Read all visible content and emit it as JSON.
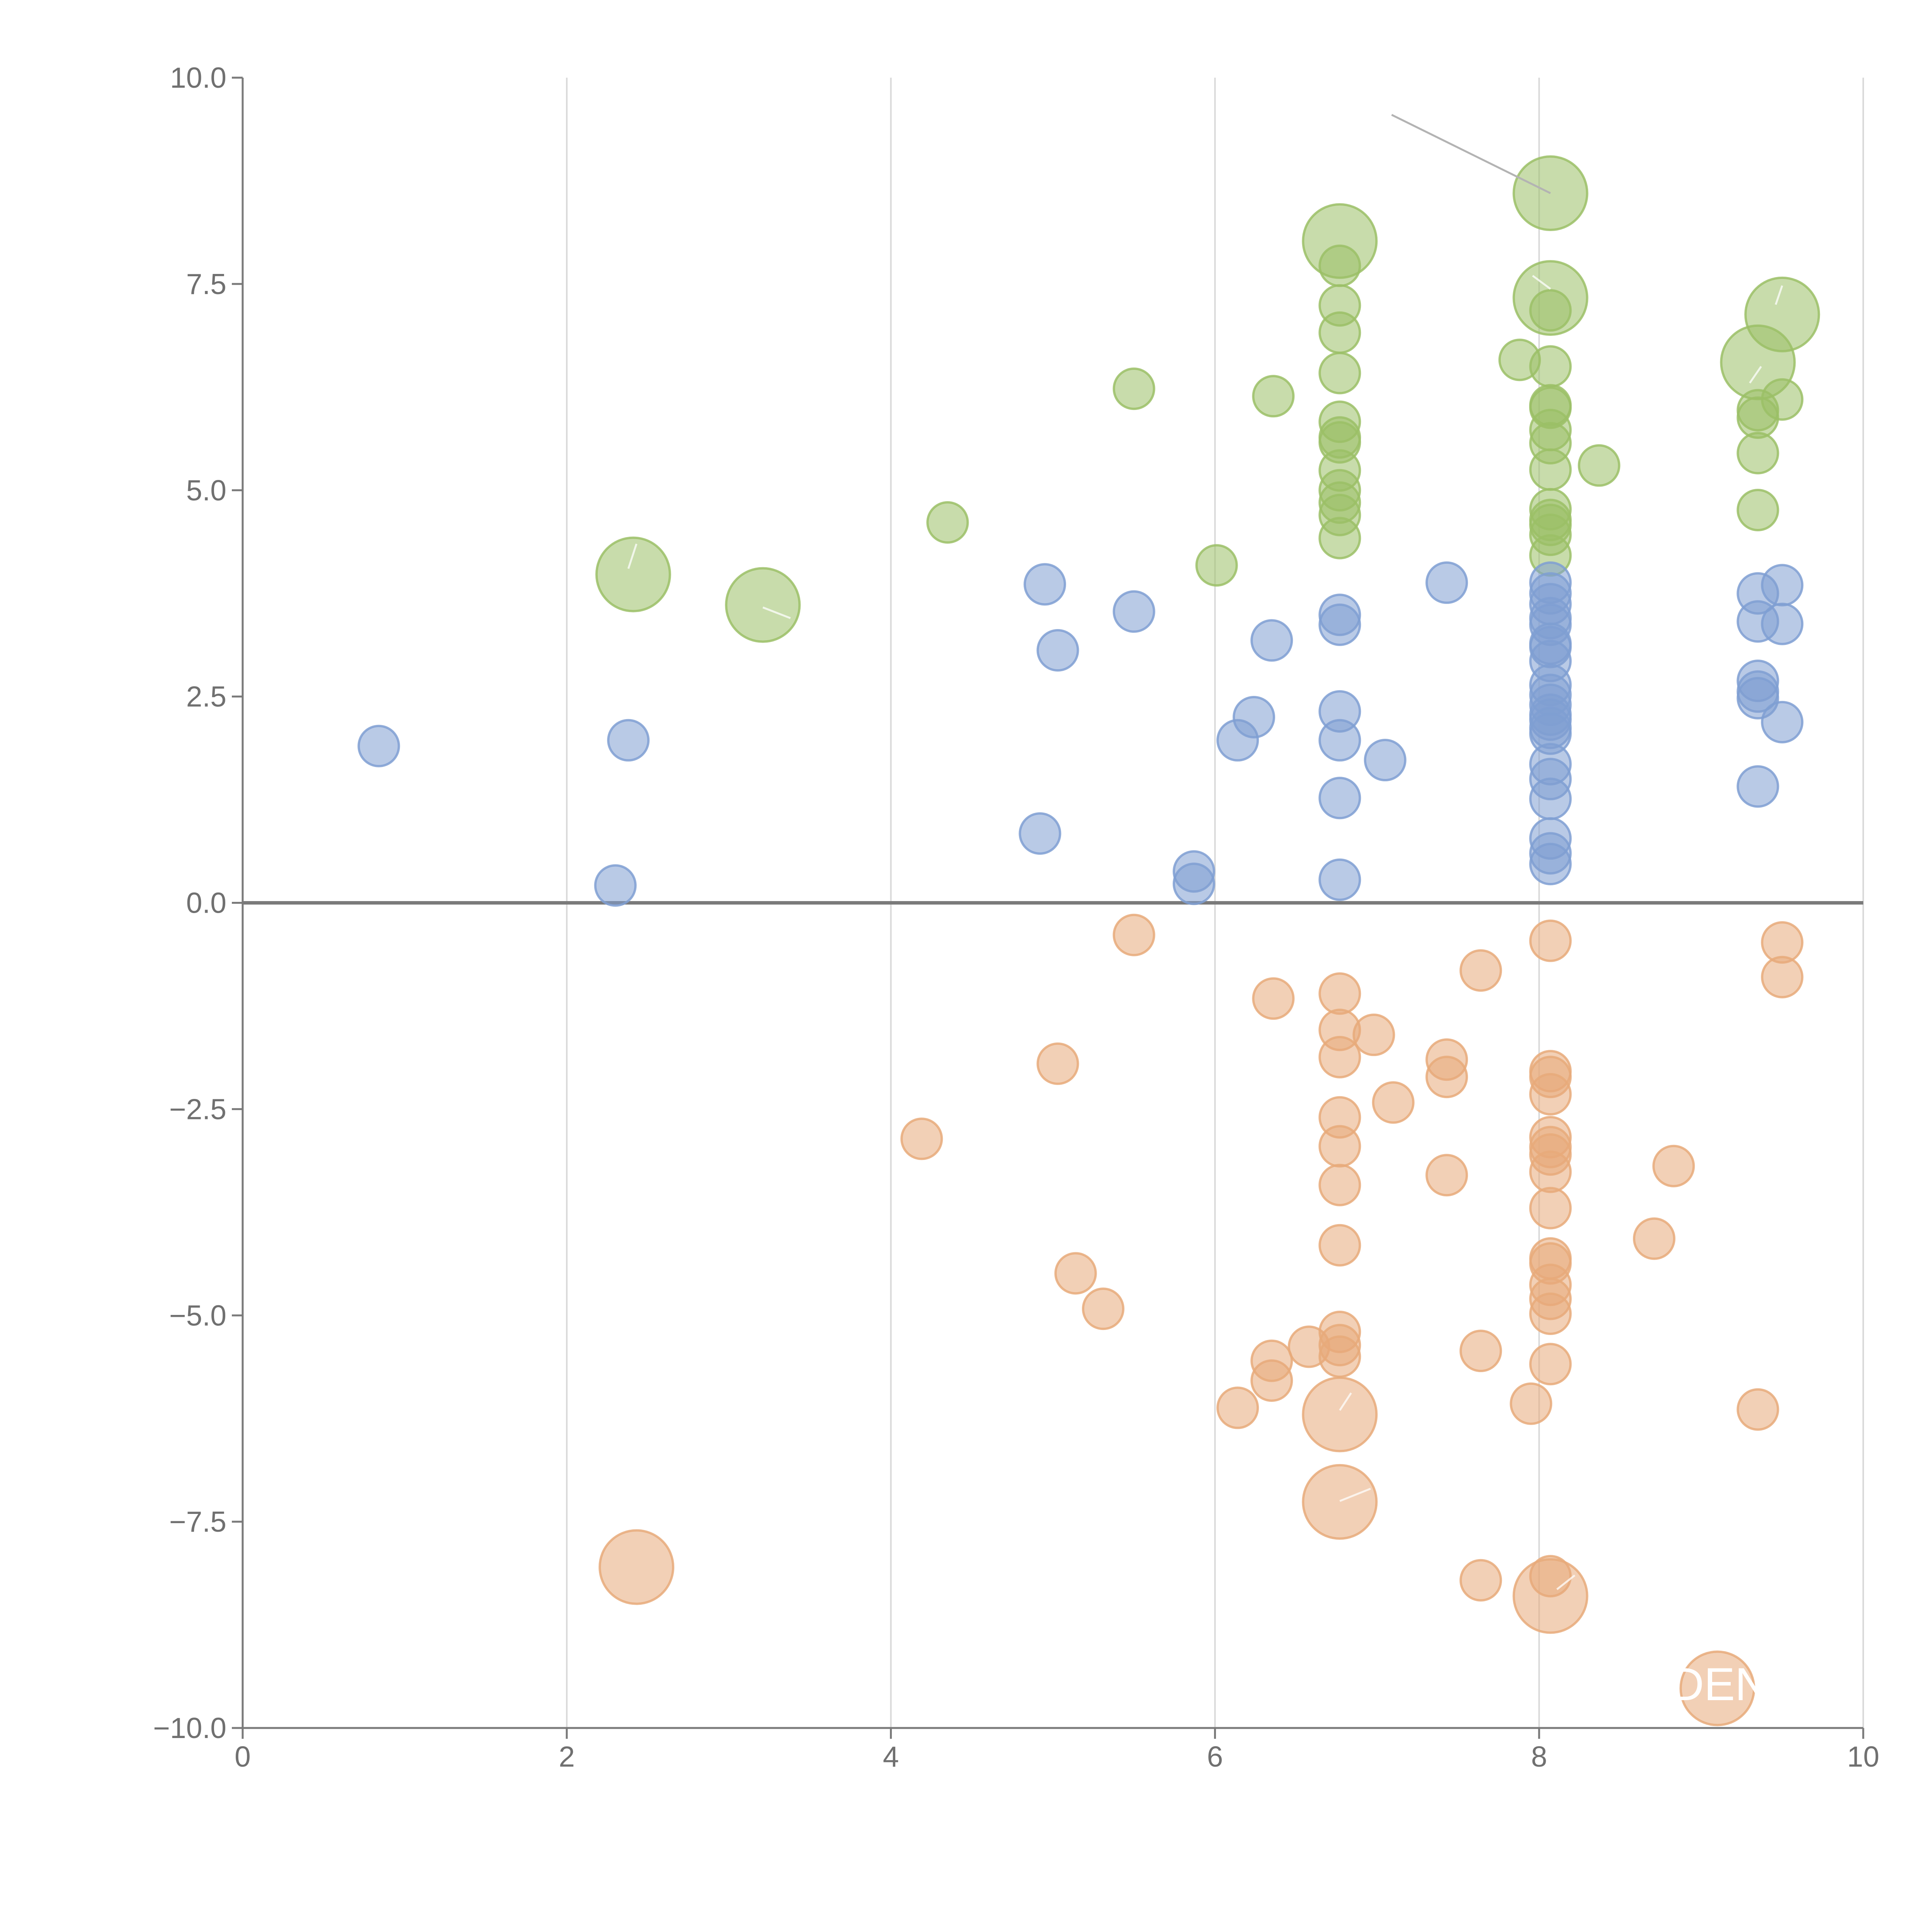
{
  "chart_data": {
    "type": "scatter",
    "title": "",
    "xlabel": "",
    "ylabel": "",
    "xlim": [
      0,
      10
    ],
    "ylim": [
      -10,
      10
    ],
    "grid": "vertical",
    "x_ticks": [
      0,
      2,
      4,
      6,
      8,
      10
    ],
    "y_ticks": [
      10.0,
      7.5,
      5.0,
      2.5,
      0.0,
      -2.5,
      -5.0,
      -7.5,
      -10.0
    ],
    "x_tick_labels": [
      "0",
      "2",
      "4",
      "6",
      "8",
      "10"
    ],
    "y_tick_labels": [
      "10.0",
      "7.5",
      "5.0",
      "2.5",
      "0.0",
      "−2.5",
      "−5.0",
      "−7.5",
      "−10.0"
    ],
    "annotation_text": "DEN",
    "series": [
      {
        "name": "green",
        "color": "#9bbf66",
        "points": [
          [
            8.07,
            8.6,
            "large"
          ],
          [
            6.77,
            8.02,
            "large"
          ],
          [
            8.07,
            7.33,
            "large"
          ],
          [
            9.5,
            7.13,
            "large"
          ],
          [
            9.35,
            6.55,
            "large"
          ],
          [
            2.41,
            3.98,
            "large"
          ],
          [
            3.21,
            3.61,
            "large"
          ],
          [
            6.77,
            7.72,
            "small"
          ],
          [
            6.77,
            7.24,
            "small"
          ],
          [
            6.77,
            6.91,
            "small"
          ],
          [
            6.77,
            6.42,
            "small"
          ],
          [
            6.77,
            5.83,
            "small"
          ],
          [
            6.77,
            5.64,
            "small"
          ],
          [
            6.77,
            5.58,
            "small"
          ],
          [
            6.77,
            5.24,
            "small"
          ],
          [
            6.77,
            5.0,
            "small"
          ],
          [
            6.77,
            4.85,
            "small"
          ],
          [
            6.77,
            4.7,
            "small"
          ],
          [
            6.77,
            4.42,
            "small"
          ],
          [
            7.88,
            6.58,
            "small"
          ],
          [
            8.07,
            7.18,
            "small"
          ],
          [
            8.07,
            6.5,
            "small"
          ],
          [
            8.07,
            6.03,
            "small"
          ],
          [
            8.07,
            6.0,
            "small"
          ],
          [
            8.07,
            5.73,
            "small"
          ],
          [
            8.07,
            5.57,
            "small"
          ],
          [
            8.07,
            5.25,
            "small"
          ],
          [
            8.07,
            4.77,
            "small"
          ],
          [
            8.07,
            4.64,
            "small"
          ],
          [
            8.07,
            4.58,
            "small"
          ],
          [
            8.07,
            4.46,
            "small"
          ],
          [
            8.07,
            4.21,
            "small"
          ],
          [
            8.37,
            5.3,
            "small"
          ],
          [
            9.35,
            5.97,
            "small"
          ],
          [
            9.35,
            5.88,
            "small"
          ],
          [
            9.35,
            5.45,
            "small"
          ],
          [
            9.35,
            4.76,
            "small"
          ],
          [
            9.5,
            6.1,
            "small"
          ],
          [
            5.5,
            6.23,
            "small"
          ],
          [
            6.36,
            6.14,
            "small"
          ],
          [
            4.35,
            4.61,
            "small"
          ],
          [
            6.01,
            4.09,
            "small"
          ]
        ]
      },
      {
        "name": "blue",
        "color": "#7f9fd2",
        "points": [
          [
            0.84,
            1.9,
            "small"
          ],
          [
            2.38,
            1.97,
            "small"
          ],
          [
            2.3,
            0.21,
            "small"
          ],
          [
            4.95,
            3.86,
            "small"
          ],
          [
            5.03,
            3.06,
            "small"
          ],
          [
            5.5,
            3.53,
            "small"
          ],
          [
            4.92,
            0.84,
            "small"
          ],
          [
            5.87,
            0.38,
            "small"
          ],
          [
            5.87,
            0.23,
            "small"
          ],
          [
            6.14,
            1.97,
            "small"
          ],
          [
            6.24,
            2.25,
            "small"
          ],
          [
            6.35,
            3.18,
            "small"
          ],
          [
            6.77,
            3.49,
            "small"
          ],
          [
            6.77,
            3.37,
            "small"
          ],
          [
            6.77,
            2.32,
            "small"
          ],
          [
            6.77,
            1.97,
            "small"
          ],
          [
            6.77,
            1.27,
            "small"
          ],
          [
            6.77,
            0.28,
            "small"
          ],
          [
            7.05,
            1.73,
            "small"
          ],
          [
            7.43,
            3.88,
            "small"
          ],
          [
            8.07,
            3.88,
            "small"
          ],
          [
            8.07,
            3.75,
            "small"
          ],
          [
            8.07,
            3.62,
            "small"
          ],
          [
            8.07,
            3.45,
            "small"
          ],
          [
            8.07,
            3.37,
            "small"
          ],
          [
            8.07,
            3.14,
            "small"
          ],
          [
            8.07,
            3.1,
            "small"
          ],
          [
            8.07,
            2.93,
            "small"
          ],
          [
            8.07,
            2.64,
            "small"
          ],
          [
            8.07,
            2.52,
            "small"
          ],
          [
            8.07,
            2.4,
            "small"
          ],
          [
            8.07,
            2.28,
            "small"
          ],
          [
            8.07,
            2.22,
            "small"
          ],
          [
            8.07,
            2.12,
            "small"
          ],
          [
            8.07,
            2.05,
            "small"
          ],
          [
            8.07,
            1.68,
            "small"
          ],
          [
            8.07,
            1.5,
            "small"
          ],
          [
            8.07,
            1.26,
            "small"
          ],
          [
            8.07,
            0.78,
            "small"
          ],
          [
            8.07,
            0.6,
            "small"
          ],
          [
            8.07,
            0.47,
            "small"
          ],
          [
            9.35,
            3.75,
            "small"
          ],
          [
            9.35,
            3.41,
            "small"
          ],
          [
            9.35,
            2.69,
            "small"
          ],
          [
            9.35,
            2.56,
            "small"
          ],
          [
            9.35,
            2.48,
            "small"
          ],
          [
            9.35,
            1.41,
            "small"
          ],
          [
            9.5,
            3.85,
            "small"
          ],
          [
            9.5,
            3.38,
            "small"
          ],
          [
            9.5,
            2.19,
            "small"
          ]
        ]
      },
      {
        "name": "orange",
        "color": "#e8aa7a",
        "points": [
          [
            5.5,
            -0.39,
            "small"
          ],
          [
            6.36,
            -1.16,
            "small"
          ],
          [
            5.03,
            -1.95,
            "small"
          ],
          [
            4.19,
            -2.86,
            "small"
          ],
          [
            5.14,
            -4.49,
            "small"
          ],
          [
            5.31,
            -4.92,
            "small"
          ],
          [
            6.14,
            -6.12,
            "small"
          ],
          [
            6.35,
            -5.79,
            "small"
          ],
          [
            6.35,
            -5.55,
            "small"
          ],
          [
            6.58,
            -5.38,
            "small"
          ],
          [
            6.77,
            -1.1,
            "small"
          ],
          [
            6.77,
            -1.54,
            "small"
          ],
          [
            6.77,
            -1.87,
            "small"
          ],
          [
            6.77,
            -2.6,
            "small"
          ],
          [
            6.77,
            -2.95,
            "small"
          ],
          [
            6.77,
            -3.42,
            "small"
          ],
          [
            6.77,
            -4.15,
            "small"
          ],
          [
            6.77,
            -5.2,
            "small"
          ],
          [
            6.77,
            -5.36,
            "small"
          ],
          [
            6.77,
            -5.5,
            "small"
          ],
          [
            6.77,
            -6.2,
            "large"
          ],
          [
            6.77,
            -7.26,
            "large"
          ],
          [
            6.98,
            -1.6,
            "small"
          ],
          [
            7.1,
            -2.42,
            "small"
          ],
          [
            7.43,
            -1.9,
            "small"
          ],
          [
            7.43,
            -2.11,
            "small"
          ],
          [
            7.43,
            -3.3,
            "small"
          ],
          [
            7.64,
            -0.82,
            "small"
          ],
          [
            7.64,
            -5.43,
            "small"
          ],
          [
            7.64,
            -8.21,
            "small"
          ],
          [
            7.95,
            -6.07,
            "small"
          ],
          [
            8.07,
            -0.46,
            "small"
          ],
          [
            8.07,
            -2.04,
            "small"
          ],
          [
            8.07,
            -2.11,
            "small"
          ],
          [
            8.07,
            -2.32,
            "small"
          ],
          [
            8.07,
            -2.84,
            "small"
          ],
          [
            8.07,
            -2.96,
            "small"
          ],
          [
            8.07,
            -3.05,
            "small"
          ],
          [
            8.07,
            -3.26,
            "small"
          ],
          [
            8.07,
            -3.7,
            "small"
          ],
          [
            8.07,
            -4.31,
            "small"
          ],
          [
            8.07,
            -4.37,
            "small"
          ],
          [
            8.07,
            -4.63,
            "small"
          ],
          [
            8.07,
            -4.8,
            "small"
          ],
          [
            8.07,
            -4.98,
            "small"
          ],
          [
            8.07,
            -5.59,
            "small"
          ],
          [
            8.07,
            -8.16,
            "small"
          ],
          [
            8.07,
            -8.4,
            "large"
          ],
          [
            8.71,
            -4.07,
            "small"
          ],
          [
            8.83,
            -3.19,
            "small"
          ],
          [
            9.35,
            -6.14,
            "small"
          ],
          [
            9.5,
            -0.48,
            "small"
          ],
          [
            9.5,
            -0.9,
            "small"
          ],
          [
            2.43,
            -8.05,
            "large"
          ],
          [
            9.1,
            -9.52,
            "large"
          ]
        ]
      }
    ]
  }
}
